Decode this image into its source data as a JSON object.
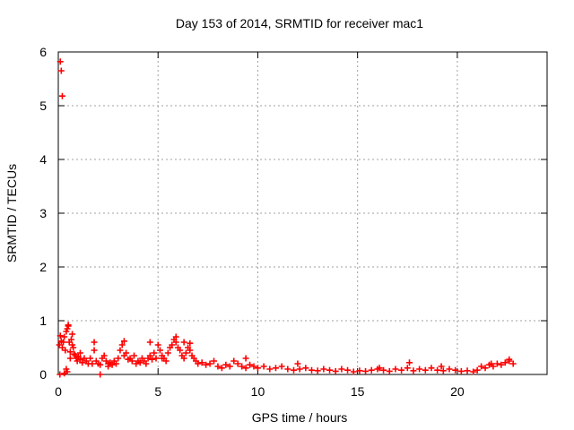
{
  "chart_data": {
    "type": "scatter",
    "title": "Day 153 of 2014, SRMTID for receiver mac1",
    "xlabel": "GPS time / hours",
    "ylabel": "SRMTID / TECUs",
    "xlim": [
      0,
      24.5
    ],
    "ylim": [
      0,
      6
    ],
    "xticks": [
      0,
      5,
      10,
      15,
      20
    ],
    "yticks": [
      0,
      1,
      2,
      3,
      4,
      5,
      6
    ],
    "grid": true,
    "marker": "plus",
    "series": [
      {
        "color": "#ff0000",
        "x": [
          0.05,
          0.1,
          0.15,
          0.2,
          0.25,
          0.3,
          0.35,
          0.4,
          0.45,
          0.5,
          0.55,
          0.6,
          0.65,
          0.7,
          0.75,
          0.8,
          0.85,
          0.9,
          0.95,
          1.0,
          1.1,
          1.2,
          1.3,
          1.4,
          1.5,
          1.6,
          1.7,
          1.8,
          1.9,
          2.0,
          2.1,
          2.2,
          2.3,
          2.4,
          2.5,
          2.6,
          2.7,
          2.8,
          2.9,
          3.0,
          3.1,
          3.2,
          3.3,
          3.4,
          3.5,
          3.6,
          3.7,
          3.8,
          3.9,
          4.0,
          4.1,
          4.2,
          4.3,
          4.4,
          4.5,
          4.6,
          4.7,
          4.8,
          4.9,
          5.0,
          5.1,
          5.2,
          5.3,
          5.4,
          5.5,
          5.6,
          5.7,
          5.8,
          5.9,
          6.0,
          6.1,
          6.2,
          6.3,
          6.4,
          6.5,
          6.6,
          6.7,
          6.8,
          6.9,
          7.0,
          7.2,
          7.4,
          7.6,
          7.8,
          8.0,
          8.2,
          8.4,
          8.6,
          8.8,
          9.0,
          9.2,
          9.4,
          9.6,
          9.8,
          10.0,
          10.3,
          10.6,
          10.9,
          11.2,
          11.5,
          11.8,
          12.1,
          12.4,
          12.7,
          13.0,
          13.3,
          13.6,
          13.9,
          14.2,
          14.5,
          14.8,
          15.1,
          15.4,
          15.7,
          16.0,
          16.3,
          16.6,
          16.9,
          17.2,
          17.5,
          17.8,
          18.1,
          18.4,
          18.7,
          19.0,
          19.3,
          19.6,
          19.9,
          20.2,
          20.5,
          20.8,
          21.0,
          21.2,
          21.4,
          21.6,
          21.8,
          22.0,
          22.2,
          22.4,
          22.6,
          22.8,
          0.1,
          0.15,
          0.2,
          0.08,
          0.3,
          0.4,
          0.5,
          0.6,
          0.45,
          1.8,
          2.1,
          3.3,
          5.9,
          6.3,
          17.6,
          0.7,
          1.1,
          2.5,
          4.6,
          5.2,
          6.6,
          9.4,
          12.0,
          16.1,
          19.2,
          21.7,
          22.6
        ],
        "y": [
          0.55,
          0.72,
          0.62,
          0.5,
          0.6,
          0.7,
          0.45,
          0.8,
          0.85,
          0.9,
          0.6,
          0.42,
          0.65,
          0.55,
          0.5,
          0.38,
          0.35,
          0.3,
          0.25,
          0.33,
          0.28,
          0.22,
          0.3,
          0.25,
          0.2,
          0.3,
          0.2,
          0.45,
          0.25,
          0.2,
          0.18,
          0.3,
          0.35,
          0.25,
          0.2,
          0.22,
          0.18,
          0.25,
          0.2,
          0.3,
          0.45,
          0.55,
          0.35,
          0.4,
          0.28,
          0.3,
          0.25,
          0.35,
          0.2,
          0.25,
          0.22,
          0.3,
          0.25,
          0.2,
          0.3,
          0.35,
          0.28,
          0.4,
          0.3,
          0.55,
          0.45,
          0.35,
          0.3,
          0.25,
          0.4,
          0.5,
          0.55,
          0.65,
          0.6,
          0.5,
          0.45,
          0.35,
          0.3,
          0.4,
          0.5,
          0.45,
          0.35,
          0.3,
          0.25,
          0.2,
          0.22,
          0.18,
          0.2,
          0.25,
          0.15,
          0.12,
          0.18,
          0.15,
          0.25,
          0.2,
          0.15,
          0.12,
          0.18,
          0.15,
          0.12,
          0.15,
          0.1,
          0.12,
          0.15,
          0.1,
          0.08,
          0.1,
          0.12,
          0.08,
          0.07,
          0.1,
          0.08,
          0.06,
          0.1,
          0.08,
          0.05,
          0.07,
          0.06,
          0.08,
          0.1,
          0.08,
          0.06,
          0.1,
          0.08,
          0.12,
          0.07,
          0.1,
          0.08,
          0.12,
          0.08,
          0.07,
          0.1,
          0.08,
          0.06,
          0.07,
          0.05,
          0.08,
          0.15,
          0.12,
          0.18,
          0.15,
          0.2,
          0.18,
          0.22,
          0.25,
          0.2,
          5.82,
          5.65,
          5.18,
          0.0,
          0.02,
          0.1,
          0.92,
          0.3,
          0.05,
          0.6,
          0.0,
          0.62,
          0.7,
          0.6,
          0.22,
          0.75,
          0.4,
          0.15,
          0.6,
          0.3,
          0.58,
          0.3,
          0.2,
          0.12,
          0.15,
          0.2,
          0.28
        ]
      }
    ]
  }
}
